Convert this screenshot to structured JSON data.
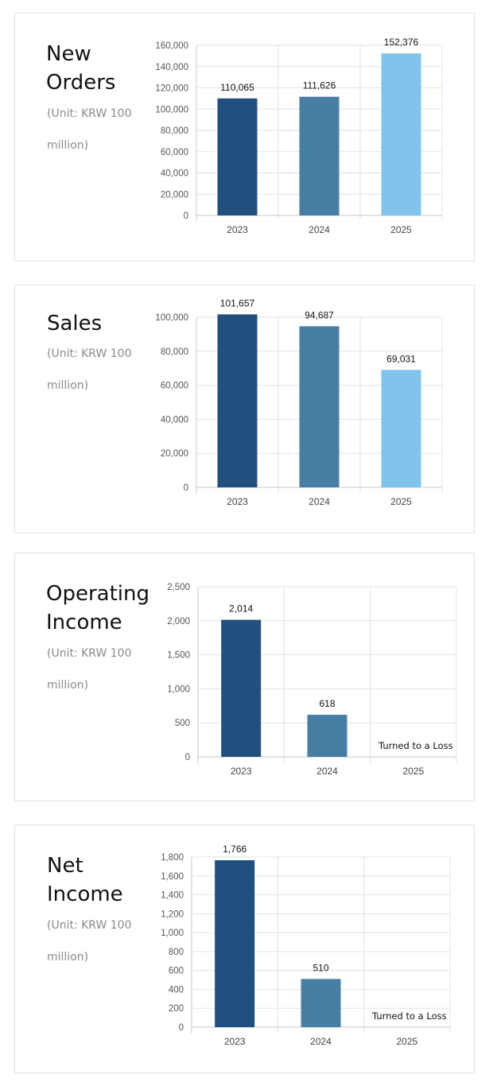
{
  "colors": {
    "y2023": "#214f7e",
    "y2024": "#477ea4",
    "y2025": "#80c3eb",
    "grid": "#e3e3e3",
    "axis": "#c8c8c8"
  },
  "cards": [
    {
      "title": "New\nOrders",
      "unit": "(Unit: KRW 100 million)"
    },
    {
      "title": "Sales",
      "unit": "(Unit: KRW 100 million)"
    },
    {
      "title": "Operating\nIncome",
      "unit": "(Unit: KRW 100 million)"
    },
    {
      "title": "Net\nIncome",
      "unit": "(Unit: KRW 100 million)"
    }
  ],
  "chart_data": [
    {
      "type": "bar",
      "categories": [
        "2023",
        "2024",
        "2025"
      ],
      "values": [
        110065,
        111626,
        152376
      ],
      "value_labels": [
        "110,065",
        "111,626",
        "152,376"
      ],
      "ylim": [
        0,
        160000
      ],
      "yticks": [
        "0",
        "20,000",
        "40,000",
        "60,000",
        "80,000",
        "100,000",
        "120,000",
        "140,000",
        "160,000"
      ],
      "grid": true,
      "notes": [
        "",
        "",
        ""
      ]
    },
    {
      "type": "bar",
      "categories": [
        "2023",
        "2024",
        "2025"
      ],
      "values": [
        101657,
        94687,
        69031
      ],
      "value_labels": [
        "101,657",
        "94,687",
        "69,031"
      ],
      "ylim": [
        0,
        100000
      ],
      "yticks": [
        "0",
        "20,000",
        "40,000",
        "60,000",
        "80,000",
        "100,000"
      ],
      "grid": true,
      "notes": [
        "",
        "",
        ""
      ]
    },
    {
      "type": "bar",
      "categories": [
        "2023",
        "2024",
        "2025"
      ],
      "values": [
        2014,
        618,
        null
      ],
      "value_labels": [
        "2,014",
        "618",
        ""
      ],
      "ylim": [
        0,
        2500
      ],
      "yticks": [
        "0",
        "500",
        "1,000",
        "1,500",
        "2,000",
        "2,500"
      ],
      "grid": true,
      "notes": [
        "",
        "",
        "Turned to a Loss"
      ]
    },
    {
      "type": "bar",
      "categories": [
        "2023",
        "2024",
        "2025"
      ],
      "values": [
        1766,
        510,
        null
      ],
      "value_labels": [
        "1,766",
        "510",
        ""
      ],
      "ylim": [
        0,
        1800
      ],
      "yticks": [
        "0",
        "200",
        "400",
        "600",
        "800",
        "1,000",
        "1,200",
        "1,400",
        "1,600",
        "1,800"
      ],
      "grid": true,
      "notes": [
        "",
        "",
        "Turned to a Loss"
      ]
    }
  ]
}
